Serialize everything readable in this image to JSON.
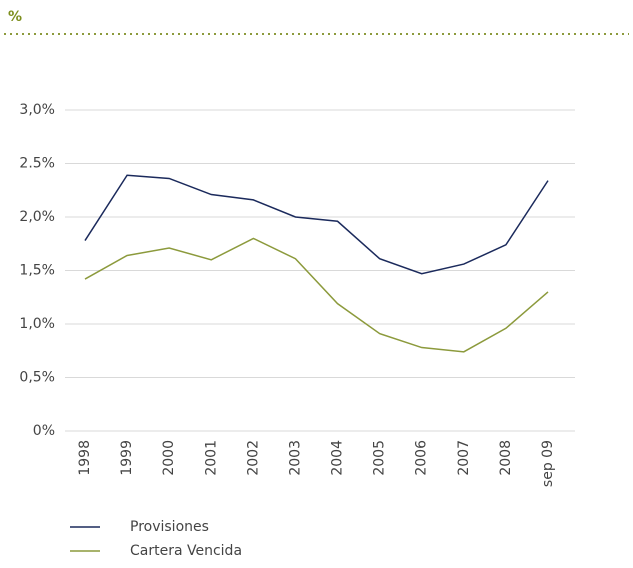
{
  "chart_data": {
    "type": "line",
    "title": "%",
    "categories": [
      "1998",
      "1999",
      "2000",
      "2001",
      "2002",
      "2003",
      "2004",
      "2005",
      "2006",
      "2007",
      "2008",
      "sep 09"
    ],
    "series": [
      {
        "name": "Provisiones",
        "color": "#1b2a5c",
        "values": [
          1.78,
          2.39,
          2.36,
          2.21,
          2.16,
          2.0,
          1.96,
          1.61,
          1.47,
          1.56,
          1.74,
          2.34
        ]
      },
      {
        "name": "Cartera Vencida",
        "color": "#8c9a3c",
        "values": [
          1.42,
          1.64,
          1.71,
          1.6,
          1.8,
          1.61,
          1.19,
          0.91,
          0.78,
          0.74,
          0.96,
          1.3
        ]
      }
    ],
    "ylim": [
      0,
      3
    ],
    "yticks": [
      {
        "value": 0,
        "label": "0%"
      },
      {
        "value": 0.5,
        "label": "0,5%"
      },
      {
        "value": 1,
        "label": "1,0%"
      },
      {
        "value": 1.5,
        "label": "1,5%"
      },
      {
        "value": 2,
        "label": "2,0%"
      },
      {
        "value": 2.5,
        "label": "2.5%"
      },
      {
        "value": 3,
        "label": "3,0%"
      }
    ],
    "grid": true
  }
}
